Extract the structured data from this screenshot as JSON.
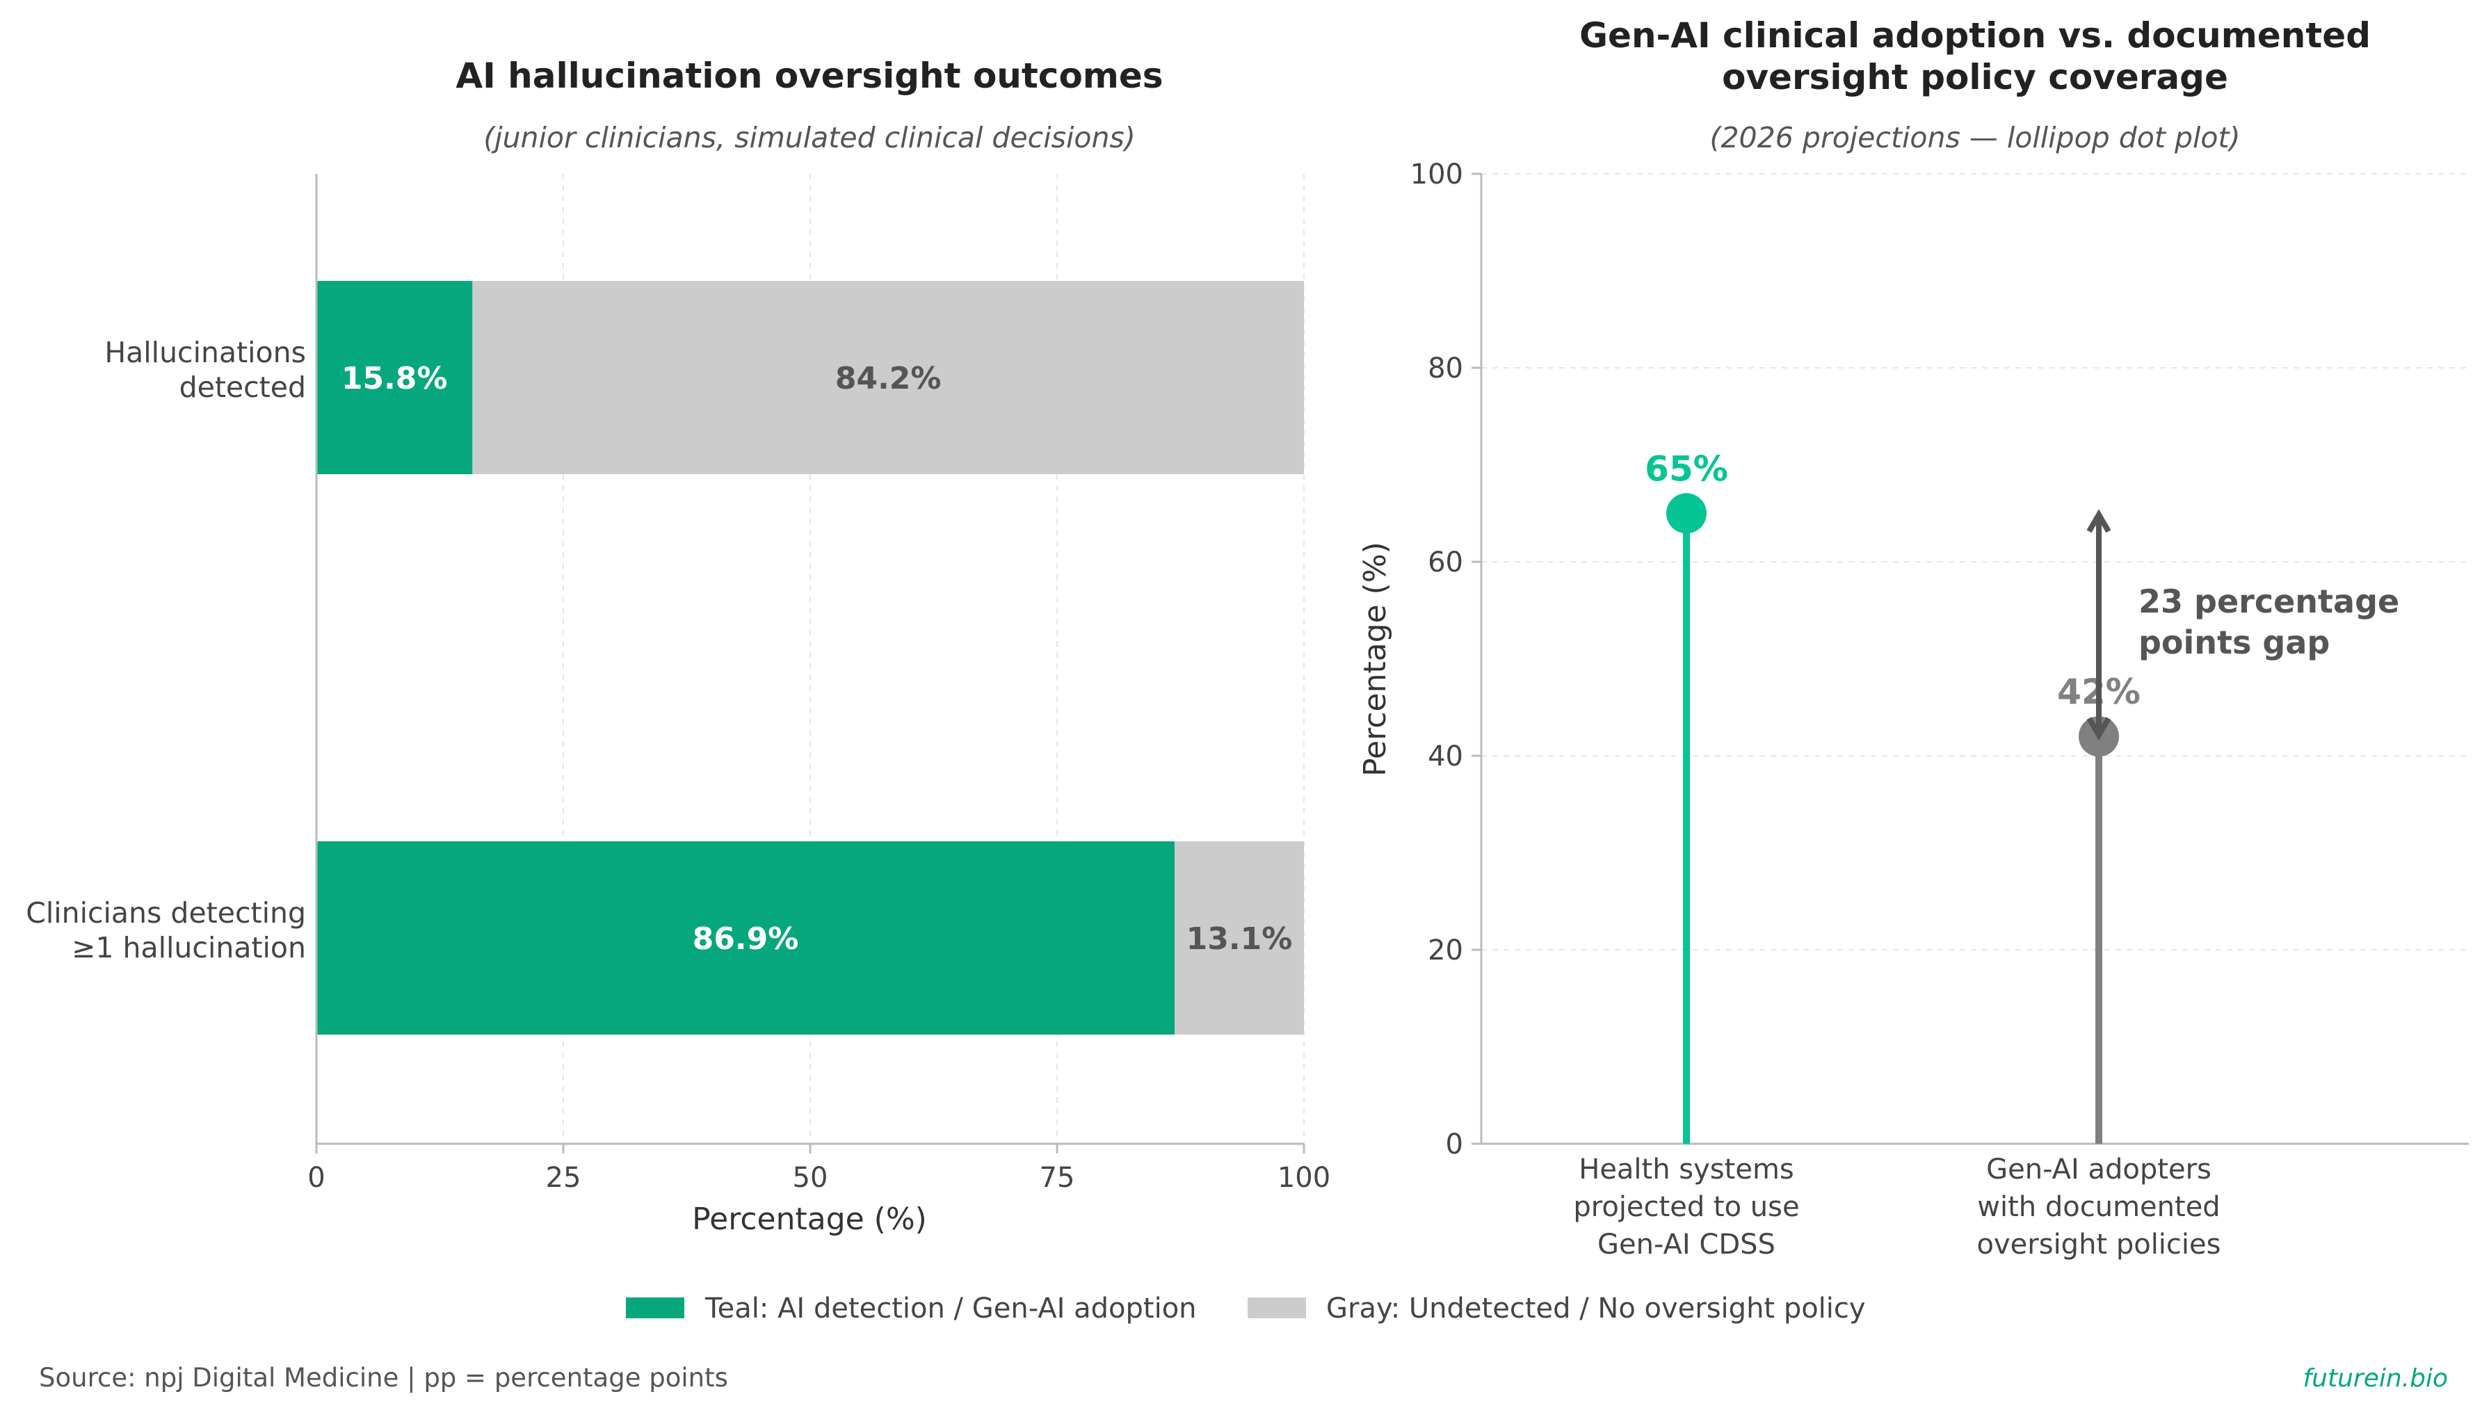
{
  "chart_data": [
    {
      "type": "bar",
      "orientation": "horizontal",
      "stacked": true,
      "title": "AI hallucination oversight outcomes",
      "subtitle": "(junior clinicians, simulated clinical decisions)",
      "xlabel": "Percentage (%)",
      "ylabel": "",
      "xlim": [
        0,
        100
      ],
      "xticks": [
        0,
        25,
        50,
        75,
        100
      ],
      "grid": "vertical dashed",
      "categories": [
        [
          "Hallucinations",
          "detected"
        ],
        [
          "Clinicians detecting",
          "≥1 hallucination"
        ]
      ],
      "series": [
        {
          "color": "#06a77d",
          "values": [
            15.8,
            86.9
          ],
          "labels": [
            "15.8%",
            "86.9%"
          ]
        },
        {
          "color": "#cccccc",
          "values": [
            84.2,
            13.1
          ],
          "labels": [
            "84.2%",
            "13.1%"
          ]
        }
      ]
    },
    {
      "type": "scatter",
      "style": "lollipop",
      "title": [
        "Gen-AI clinical adoption vs. documented",
        "oversight policy coverage"
      ],
      "subtitle": "(2026 projections — lollipop dot plot)",
      "xlabel": "",
      "ylabel": "Percentage (%)",
      "ylim": [
        0,
        100
      ],
      "yticks": [
        0,
        20,
        40,
        60,
        80,
        100
      ],
      "grid": "horizontal dashed",
      "categories": [
        [
          "Health systems",
          "projected to use",
          "Gen-AI CDSS"
        ],
        [
          "Gen-AI adopters",
          "with documented",
          "oversight policies"
        ]
      ],
      "values": [
        65,
        42
      ],
      "value_labels": [
        "65%",
        "42%"
      ],
      "colors": [
        "#06c494",
        "#808080"
      ],
      "annotation": {
        "from": 42,
        "to": 65,
        "lines": [
          "23 percentage",
          "points gap"
        ]
      }
    }
  ],
  "legend": {
    "items": [
      {
        "label": "Teal: AI detection / Gen-AI adoption",
        "color": "#06a77d"
      },
      {
        "label": "Gray: Undetected / No oversight policy",
        "color": "#cccccc"
      }
    ]
  },
  "footer": {
    "source": "Source: npj Digital Medicine | pp = percentage points",
    "brand": "futurein.bio"
  },
  "colors": {
    "text_dark": "#222222",
    "text_mid": "#444444",
    "axis": "#bbbbbb",
    "arrow": "#555555"
  }
}
